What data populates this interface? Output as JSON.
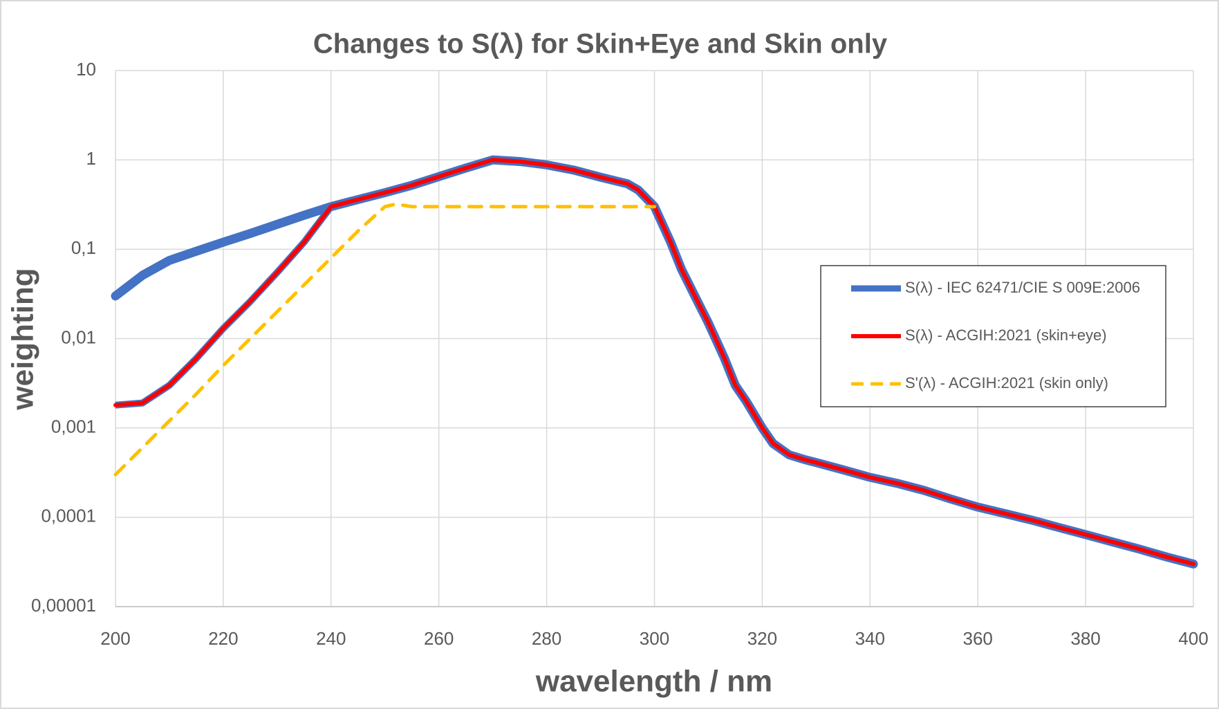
{
  "chart_data": {
    "type": "line",
    "title": "Changes to S(λ) for Skin+Eye and Skin only",
    "x_label": "wavelength / nm",
    "y_label": "weighting",
    "log_y": true,
    "grid": true,
    "legend": "right",
    "xlim": [
      200,
      400
    ],
    "xticks": [
      200,
      220,
      240,
      260,
      280,
      300,
      320,
      340,
      360,
      380,
      400
    ],
    "ylim": [
      1e-05,
      10
    ],
    "yticks": [
      {
        "value": 1e-05,
        "label": "0,00001"
      },
      {
        "value": 0.0001,
        "label": "0,0001"
      },
      {
        "value": 0.001,
        "label": "0,001"
      },
      {
        "value": 0.01,
        "label": "0,01"
      },
      {
        "value": 0.1,
        "label": "0,1"
      },
      1,
      10
    ],
    "series": [
      {
        "name": "S(λ) - IEC 62471/CIE S 009E:2006",
        "color": "#4472c4",
        "dash": false,
        "width": 13,
        "x": [
          200,
          205,
          210,
          215,
          220,
          225,
          230,
          235,
          240,
          245,
          250,
          255,
          260,
          265,
          270,
          275,
          280,
          285,
          290,
          295,
          297,
          300,
          303,
          305,
          308,
          310,
          313,
          315,
          317,
          320,
          322,
          325,
          328,
          330,
          335,
          340,
          345,
          350,
          355,
          360,
          365,
          370,
          375,
          380,
          385,
          390,
          395,
          400
        ],
        "values": [
          0.03,
          0.051,
          0.075,
          0.095,
          0.12,
          0.15,
          0.19,
          0.24,
          0.3,
          0.36,
          0.43,
          0.52,
          0.65,
          0.81,
          1,
          0.96,
          0.88,
          0.77,
          0.64,
          0.54,
          0.46,
          0.3,
          0.12,
          0.06,
          0.026,
          0.015,
          0.006,
          0.003,
          0.002,
          0.001,
          0.00067,
          0.0005,
          0.00044,
          0.00041,
          0.00034,
          0.00028,
          0.00024,
          0.0002,
          0.00016,
          0.00013,
          0.00011,
          9.3e-05,
          7.7e-05,
          6.4e-05,
          5.3e-05,
          4.4e-05,
          3.6e-05,
          3e-05
        ]
      },
      {
        "name": "S(λ) - ACGIH:2021 (skin+eye)",
        "color": "#ff0000",
        "dash": false,
        "width": 6,
        "x": [
          200,
          205,
          210,
          215,
          220,
          225,
          230,
          235,
          240,
          245,
          250,
          255,
          260,
          265,
          270,
          275,
          280,
          285,
          290,
          295,
          297,
          300,
          303,
          305,
          308,
          310,
          313,
          315,
          317,
          320,
          322,
          325,
          328,
          330,
          335,
          340,
          345,
          350,
          355,
          360,
          365,
          370,
          375,
          380,
          385,
          390,
          395,
          400
        ],
        "values": [
          0.0018,
          0.0019,
          0.003,
          0.006,
          0.013,
          0.026,
          0.055,
          0.12,
          0.3,
          0.36,
          0.43,
          0.52,
          0.65,
          0.81,
          1,
          0.96,
          0.88,
          0.77,
          0.64,
          0.54,
          0.46,
          0.3,
          0.12,
          0.06,
          0.026,
          0.015,
          0.006,
          0.003,
          0.002,
          0.001,
          0.00067,
          0.0005,
          0.00044,
          0.00041,
          0.00034,
          0.00028,
          0.00024,
          0.0002,
          0.00016,
          0.00013,
          0.00011,
          9.3e-05,
          7.7e-05,
          6.4e-05,
          5.3e-05,
          4.4e-05,
          3.6e-05,
          3e-05
        ]
      },
      {
        "name": "S'(λ) - ACGIH:2021 (skin only)",
        "color": "#ffc000",
        "dash": true,
        "width": 5,
        "x": [
          200,
          205,
          210,
          215,
          220,
          225,
          230,
          235,
          240,
          245,
          250,
          252,
          255,
          260,
          270,
          280,
          290,
          300
        ],
        "values": [
          0.0003,
          0.0006,
          0.0012,
          0.0024,
          0.005,
          0.01,
          0.02,
          0.04,
          0.08,
          0.16,
          0.3,
          0.32,
          0.3,
          0.3,
          0.3,
          0.3,
          0.3,
          0.3
        ]
      }
    ]
  }
}
